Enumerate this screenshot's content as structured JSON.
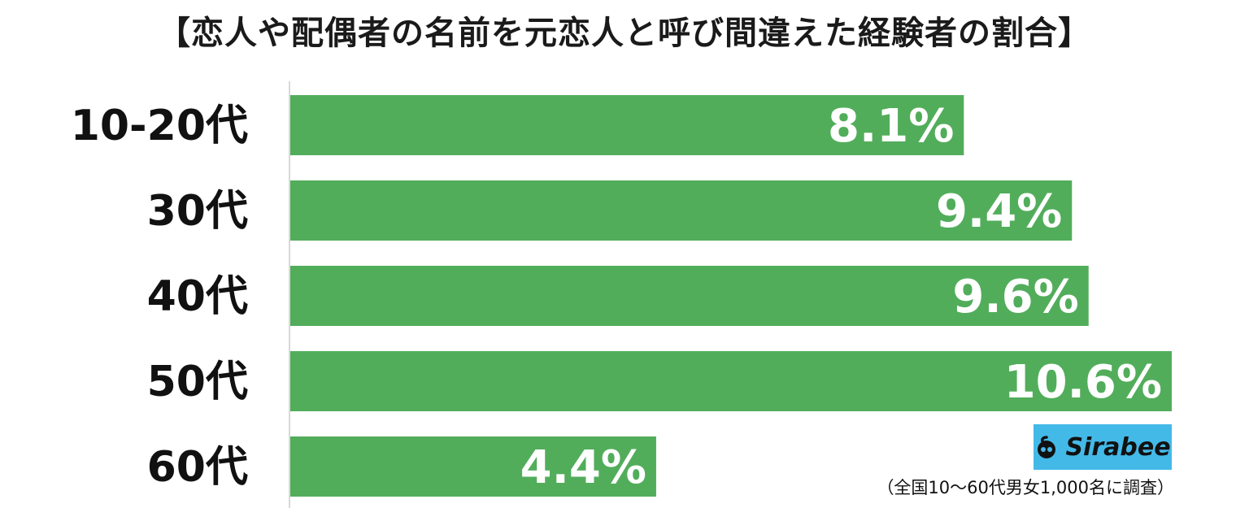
{
  "header": {
    "title": "【恋人や配偶者の名前を元恋人と呼び間違えた経験者の割合】"
  },
  "chart_data": {
    "type": "bar",
    "orientation": "horizontal",
    "categories": [
      "10-20代",
      "30代",
      "40代",
      "50代",
      "60代"
    ],
    "values": [
      8.1,
      9.4,
      9.6,
      10.6,
      4.4
    ],
    "value_labels": [
      "8.1%",
      "9.4%",
      "9.6%",
      "10.6%",
      "4.4%"
    ],
    "unit": "%",
    "xlim": [
      0,
      10.6
    ],
    "grid": false,
    "bar_color": "#52ad5b",
    "label_color": "#ffffff"
  },
  "brand": {
    "logo_text": "Sirabee",
    "logo_icon": "sirabee-logo-icon",
    "logo_bg": "#43b9e8"
  },
  "footnote": "（全国10〜60代男女1,000名に調査）"
}
